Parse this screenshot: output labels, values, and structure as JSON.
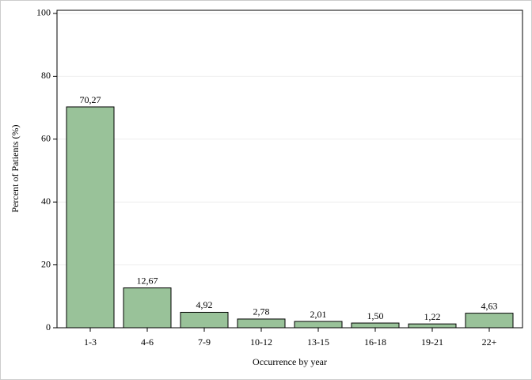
{
  "chart_data": {
    "type": "bar",
    "x_label": "Occurrence by year",
    "y_label": "Percent of Patients (%)",
    "categories": [
      "1-3",
      "4-6",
      "7-9",
      "10-12",
      "13-15",
      "16-18",
      "19-21",
      "22+"
    ],
    "values": [
      70.27,
      12.67,
      4.92,
      2.78,
      2.01,
      1.5,
      1.22,
      4.63
    ],
    "value_labels": [
      "70,27",
      "12,67",
      "4,92",
      "2,78",
      "2,01",
      "1,50",
      "1,22",
      "4,63"
    ],
    "color": "#99c299",
    "ylim": [
      0,
      101
    ],
    "yticks": [
      0,
      20,
      40,
      60,
      80,
      100
    ],
    "grid": true
  }
}
